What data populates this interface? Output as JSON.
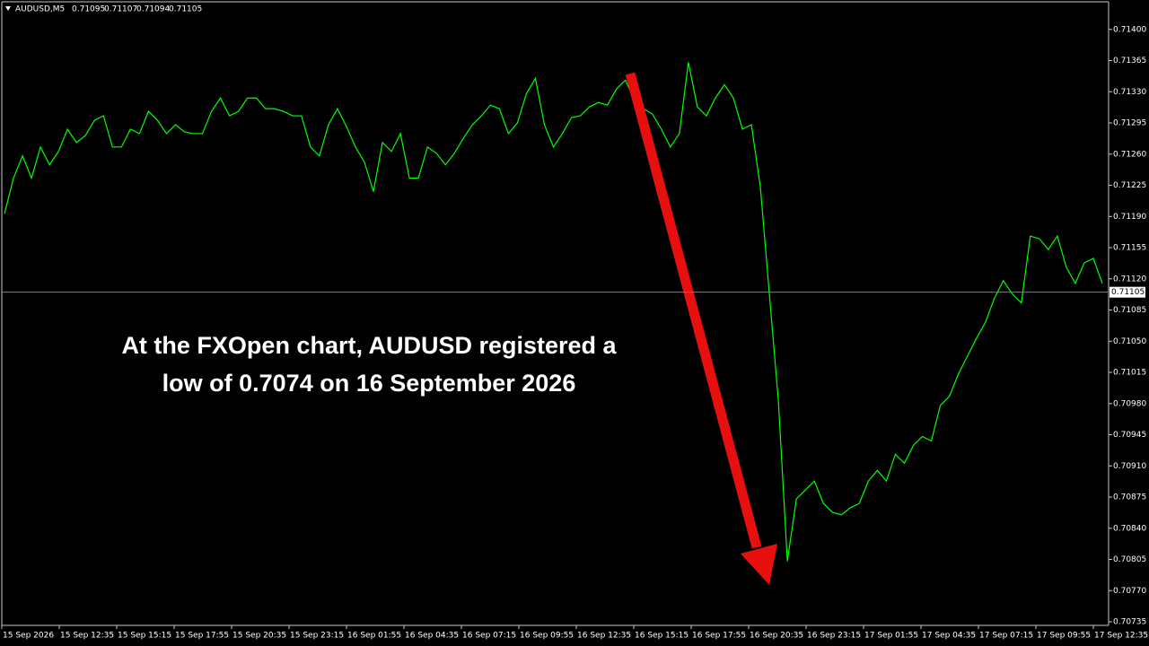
{
  "chart_data": {
    "type": "line",
    "symbol": "AUDUSD,M5",
    "ohlc": [
      0.71095,
      0.71107,
      0.71094,
      0.71105
    ],
    "annotation": [
      "At the FXOpen chart, AUDUSD registered a",
      "low of 0.7074 on 16 September 2026"
    ],
    "x_tick_labels": [
      "15 Sep 2026",
      "15 Sep 12:35",
      "15 Sep 15:15",
      "15 Sep 17:55",
      "15 Sep 20:35",
      "15 Sep 23:15",
      "16 Sep 01:55",
      "16 Sep 04:35",
      "16 Sep 07:15",
      "16 Sep 09:55",
      "16 Sep 12:35",
      "16 Sep 15:15",
      "16 Sep 17:55",
      "16 Sep 20:35",
      "16 Sep 23:15",
      "17 Sep 01:55",
      "17 Sep 04:35",
      "17 Sep 07:15",
      "17 Sep 09:55",
      "17 Sep 12:35"
    ],
    "series": [
      {
        "name": "AUDUSD",
        "color": "#00ff00",
        "values": [
          0.71193,
          0.71233,
          0.71258,
          0.71233,
          0.71268,
          0.71248,
          0.71263,
          0.71288,
          0.71273,
          0.71281,
          0.71298,
          0.71303,
          0.71268,
          0.71268,
          0.71288,
          0.71283,
          0.71308,
          0.71298,
          0.71283,
          0.71293,
          0.71285,
          0.71283,
          0.71283,
          0.71308,
          0.71323,
          0.71303,
          0.71308,
          0.71323,
          0.71323,
          0.71311,
          0.71311,
          0.71308,
          0.71303,
          0.71303,
          0.71268,
          0.71258,
          0.71293,
          0.71311,
          0.71291,
          0.71268,
          0.71251,
          0.71218,
          0.71273,
          0.71263,
          0.71283,
          0.71233,
          0.71233,
          0.71268,
          0.71261,
          0.71248,
          0.71261,
          0.71278,
          0.71293,
          0.71303,
          0.71315,
          0.71311,
          0.71283,
          0.71295,
          0.71328,
          0.71345,
          0.71293,
          0.71268,
          0.71283,
          0.71301,
          0.71303,
          0.71313,
          0.71318,
          0.71315,
          0.71333,
          0.71343,
          0.71321,
          0.71311,
          0.71305,
          0.71288,
          0.71268,
          0.71283,
          0.71363,
          0.71313,
          0.71303,
          0.71323,
          0.71338,
          0.71323,
          0.71288,
          0.71293,
          0.71223,
          0.71103,
          0.70983,
          0.70803,
          0.70873,
          0.70883,
          0.70893,
          0.70868,
          0.70858,
          0.70855,
          0.70863,
          0.70868,
          0.70893,
          0.70905,
          0.70893,
          0.70923,
          0.70913,
          0.70933,
          0.70943,
          0.70938,
          0.70978,
          0.70988,
          0.71013,
          0.71033,
          0.71053,
          0.71071,
          0.71098,
          0.71118,
          0.71103,
          0.71093,
          0.71168,
          0.71165,
          0.71153,
          0.71168,
          0.71133,
          0.71115,
          0.71138,
          0.71143,
          0.71115
        ]
      }
    ],
    "ylim": [
      0.70731,
      0.71431
    ],
    "yticks": [
      {
        "value": 0.714,
        "label": "0.71400"
      },
      {
        "value": 0.71365,
        "label": "0.71365"
      },
      {
        "value": 0.7133,
        "label": "0.71330"
      },
      {
        "value": 0.71295,
        "label": "0.71295"
      },
      {
        "value": 0.7126,
        "label": "0.71260"
      },
      {
        "value": 0.71225,
        "label": "0.71225"
      },
      {
        "value": 0.7119,
        "label": "0.71190"
      },
      {
        "value": 0.71155,
        "label": "0.71155"
      },
      {
        "value": 0.7112,
        "label": "0.71120"
      },
      {
        "value": 0.71085,
        "label": "0.71085"
      },
      {
        "value": 0.7105,
        "label": "0.71050"
      },
      {
        "value": 0.71015,
        "label": "0.71015"
      },
      {
        "value": 0.7098,
        "label": "0.70980"
      },
      {
        "value": 0.70945,
        "label": "0.70945"
      },
      {
        "value": 0.7091,
        "label": "0.70910"
      },
      {
        "value": 0.70875,
        "label": "0.70875"
      },
      {
        "value": 0.7084,
        "label": "0.70840"
      },
      {
        "value": 0.70805,
        "label": "0.70805"
      },
      {
        "value": 0.7077,
        "label": "0.70770"
      },
      {
        "value": 0.70735,
        "label": "0.70735"
      }
    ],
    "price_line": 0.71105,
    "price_line_color": "#6f8396"
  }
}
